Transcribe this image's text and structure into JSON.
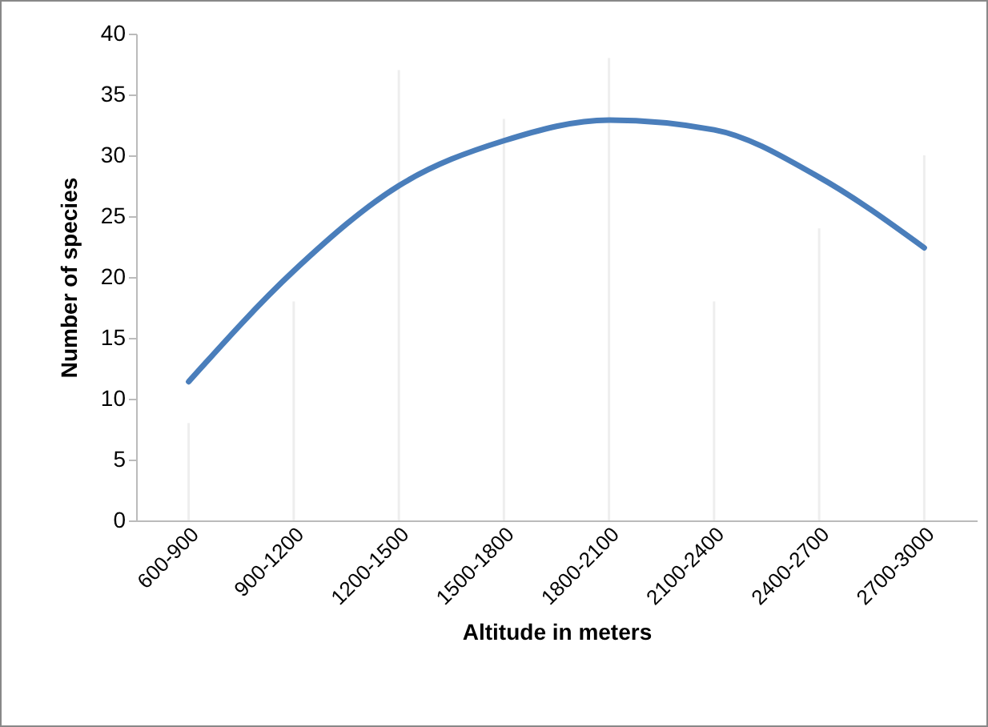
{
  "chart_data": {
    "type": "bar",
    "xlabel": "Altitude in  meters",
    "ylabel": "Number of species",
    "categories": [
      "600-900",
      "900-1200",
      "1200-1500",
      "1500-1800",
      "1800-2100",
      "2100-2400",
      "2400-2700",
      "2700-3000"
    ],
    "series": [
      {
        "color": "#eeeeee",
        "values": [
          8,
          18,
          37,
          33,
          38,
          18,
          24,
          30
        ]
      },
      {
        "type": "line",
        "color": "#4a7ebb",
        "values": [
          11.4,
          20.5,
          27.5,
          31.2,
          32.9,
          32.1,
          28.2,
          22.4
        ]
      }
    ],
    "ylim": [
      0,
      40
    ],
    "yticks": [
      0,
      5,
      10,
      15,
      20,
      25,
      30,
      35,
      40
    ],
    "grid": false
  }
}
